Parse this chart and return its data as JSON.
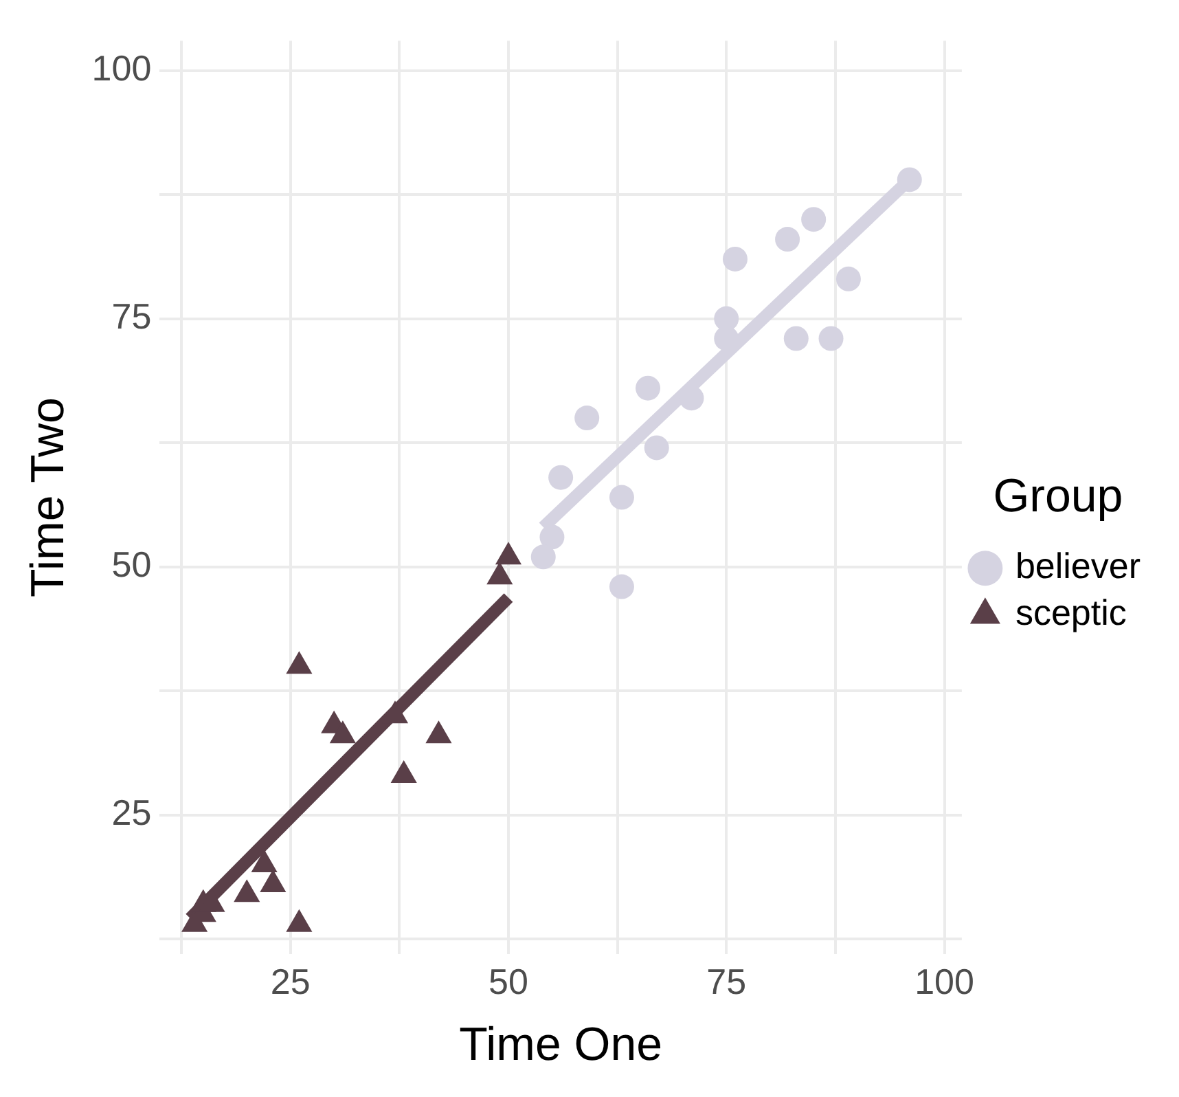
{
  "chart_data": {
    "type": "scatter",
    "xlabel": "Time One",
    "ylabel": "Time Two",
    "legend_title": "Group",
    "legend": "right",
    "grid": true,
    "xlim": [
      10,
      102
    ],
    "ylim": [
      11,
      103
    ],
    "xticks": [
      {
        "value": 12.5,
        "label": null
      },
      25,
      {
        "value": 37.5,
        "label": null
      },
      50,
      {
        "value": 62.5,
        "label": null
      },
      75,
      {
        "value": 87.5,
        "label": null
      },
      100
    ],
    "yticks": [
      {
        "value": 12.5,
        "label": null
      },
      25,
      {
        "value": 37.5,
        "label": null
      },
      50,
      {
        "value": 62.5,
        "label": null
      },
      75,
      {
        "value": 87.5,
        "label": null
      },
      100
    ],
    "series": [
      {
        "name": "believer",
        "type": "scatter",
        "marker": "circle",
        "color": "#d5d3e1",
        "x": [
          96,
          85,
          82,
          76,
          89,
          75,
          75,
          83,
          87,
          66,
          71,
          59,
          67,
          56,
          63,
          55,
          54,
          63
        ],
        "values": [
          89,
          85,
          83,
          81,
          79,
          75,
          73,
          73,
          73,
          68,
          67,
          65,
          62,
          59,
          57,
          53,
          51,
          48
        ]
      },
      {
        "name": "sceptic",
        "type": "scatter",
        "marker": "triangle",
        "color": "#5a3f48",
        "x": [
          26,
          30,
          31,
          37,
          42,
          38,
          26,
          23,
          22,
          20,
          14,
          15,
          15,
          16,
          50,
          49
        ],
        "values": [
          40,
          34,
          33,
          35,
          33,
          29,
          14,
          18,
          20,
          17,
          14,
          15,
          16,
          16,
          51,
          49
        ]
      },
      {
        "type": "line",
        "color": "#d5d3e1",
        "x": [
          54,
          95.5
        ],
        "values": [
          54,
          88.6
        ]
      },
      {
        "type": "line",
        "color": "#5a3f48",
        "x": [
          13.5,
          50
        ],
        "values": [
          14.6,
          46.9
        ]
      }
    ]
  }
}
